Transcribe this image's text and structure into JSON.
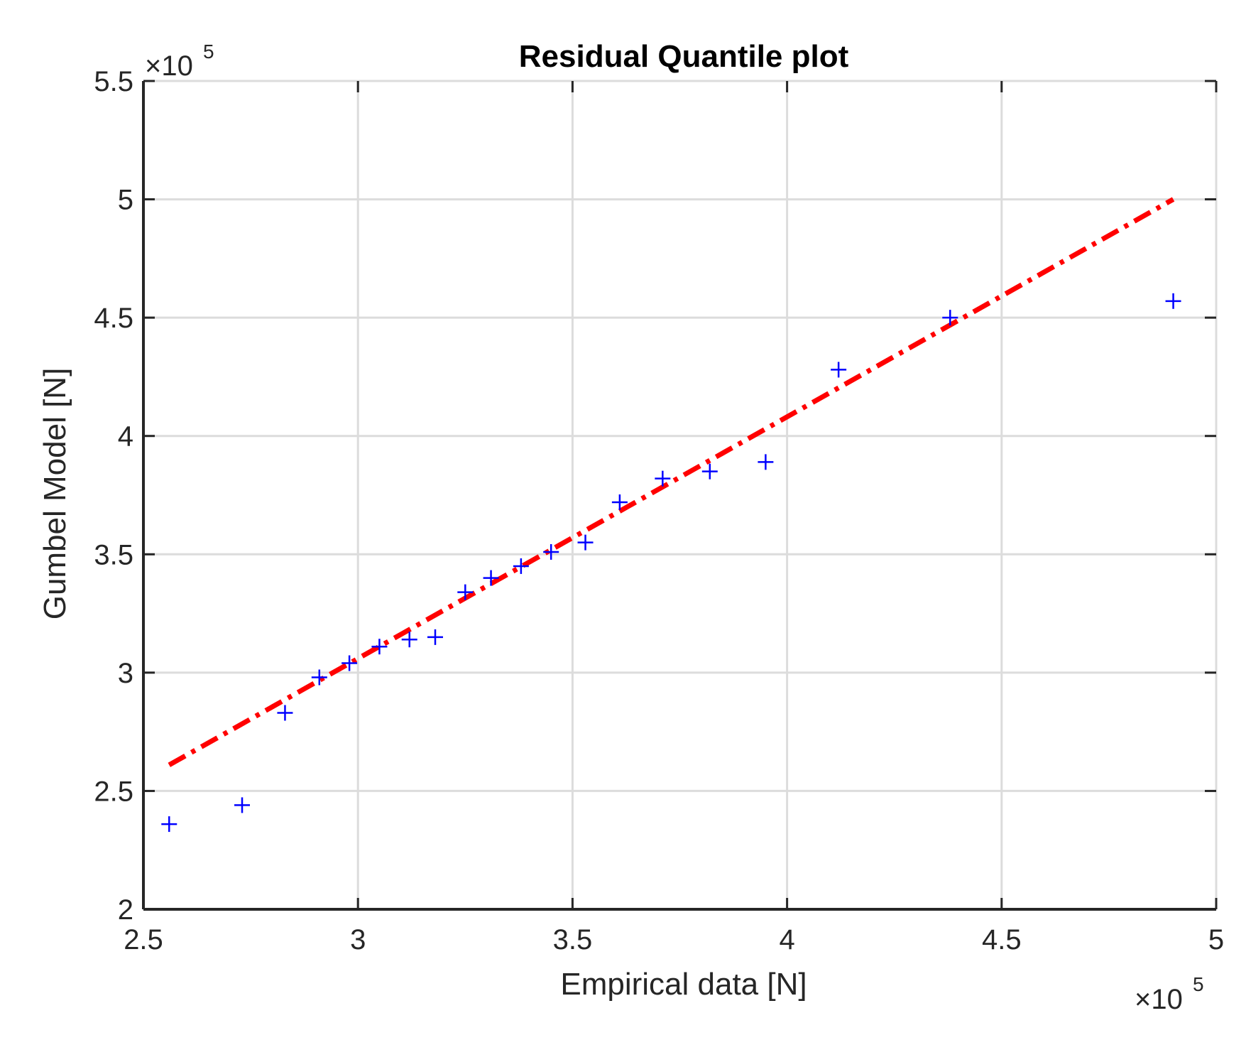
{
  "chart_data": {
    "type": "scatter",
    "title": "Residual Quantile plot",
    "xlabel": "Empirical data [N]",
    "ylabel": "Gumbel Model [N]",
    "x_multiplier_label": "×10",
    "x_multiplier_exp": "5",
    "y_multiplier_label": "×10",
    "y_multiplier_exp": "5",
    "xlim": [
      2.5,
      5.0
    ],
    "ylim": [
      2.0,
      5.5
    ],
    "x_ticks": [
      "2.5",
      "3",
      "3.5",
      "4",
      "4.5",
      "5"
    ],
    "y_ticks": [
      "2",
      "2.5",
      "3",
      "3.5",
      "4",
      "4.5",
      "5",
      "5.5"
    ],
    "grid": true,
    "series": [
      {
        "type": "scatter",
        "marker": "+",
        "color": "#0000ff",
        "points": [
          [
            2.56,
            2.36
          ],
          [
            2.73,
            2.44
          ],
          [
            2.83,
            2.83
          ],
          [
            2.91,
            2.98
          ],
          [
            2.98,
            3.04
          ],
          [
            3.05,
            3.11
          ],
          [
            3.12,
            3.14
          ],
          [
            3.18,
            3.15
          ],
          [
            3.25,
            3.34
          ],
          [
            3.31,
            3.4
          ],
          [
            3.38,
            3.45
          ],
          [
            3.45,
            3.51
          ],
          [
            3.53,
            3.55
          ],
          [
            3.61,
            3.72
          ],
          [
            3.71,
            3.82
          ],
          [
            3.82,
            3.85
          ],
          [
            3.95,
            3.89
          ],
          [
            4.12,
            4.28
          ],
          [
            4.38,
            4.5
          ],
          [
            4.9,
            4.57
          ]
        ]
      },
      {
        "type": "line",
        "style": "dash-dot",
        "color": "#ff0000",
        "points": [
          [
            2.56,
            2.61
          ],
          [
            4.9,
            5.0
          ]
        ]
      }
    ]
  }
}
